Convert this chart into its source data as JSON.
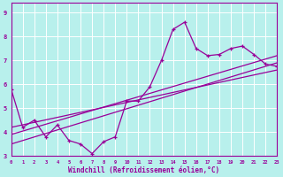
{
  "xlabel": "Windchill (Refroidissement éolien,°C)",
  "xlim": [
    0,
    23
  ],
  "ylim": [
    3,
    9.4
  ],
  "xticks": [
    0,
    1,
    2,
    3,
    4,
    5,
    6,
    7,
    8,
    9,
    10,
    11,
    12,
    13,
    14,
    15,
    16,
    17,
    18,
    19,
    20,
    21,
    22,
    23
  ],
  "yticks": [
    3,
    4,
    5,
    6,
    7,
    8,
    9
  ],
  "bg_color": "#b8f0ec",
  "line_color": "#990099",
  "grid_color": "#ffffff",
  "data_x": [
    0,
    1,
    2,
    3,
    4,
    5,
    6,
    7,
    8,
    9,
    10,
    11,
    12,
    13,
    14,
    15,
    16,
    17,
    18,
    19,
    20,
    21,
    22,
    23
  ],
  "data_y": [
    5.8,
    4.2,
    4.5,
    3.8,
    4.3,
    3.65,
    3.5,
    3.1,
    3.6,
    3.8,
    5.3,
    5.3,
    5.9,
    7.0,
    8.3,
    8.6,
    7.5,
    7.2,
    7.25,
    7.5,
    7.6,
    7.25,
    6.85,
    6.75
  ],
  "reg_lines": [
    [
      3.5,
      6.9
    ],
    [
      3.9,
      7.2
    ],
    [
      4.2,
      6.6
    ]
  ]
}
